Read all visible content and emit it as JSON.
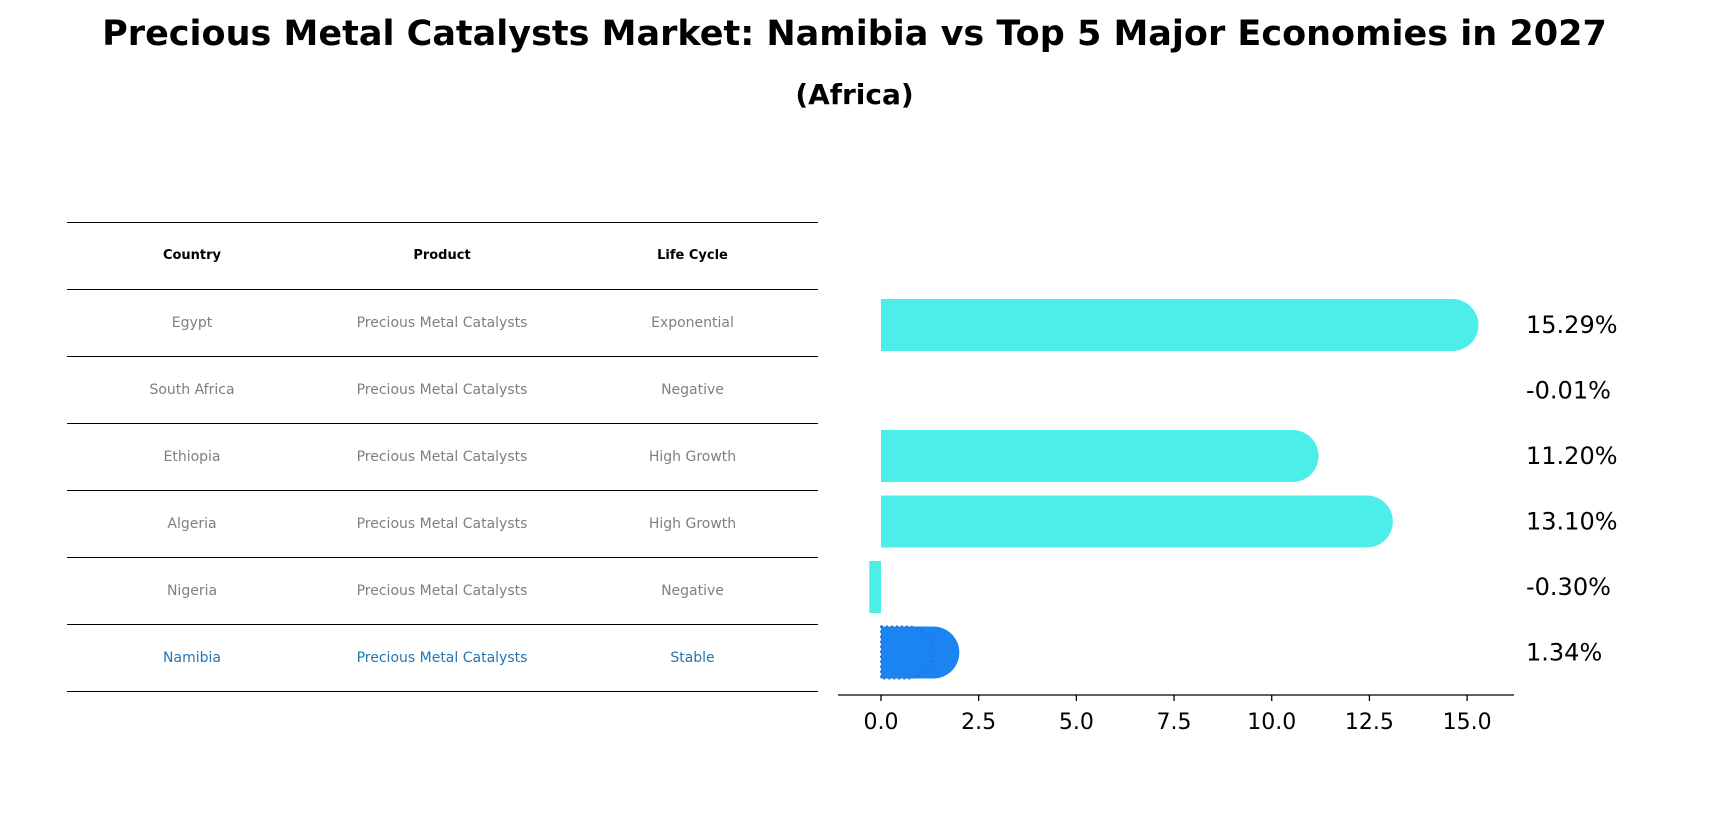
{
  "title": "Precious Metal Catalysts Market: Namibia vs Top 5 Major Economies in 2027",
  "subtitle": "(Africa)",
  "table": {
    "headers": [
      "Country",
      "Product",
      "Life Cycle"
    ],
    "rows": [
      {
        "country": "Egypt",
        "product": "Precious Metal Catalysts",
        "life_cycle": "Exponential"
      },
      {
        "country": "South Africa",
        "product": "Precious Metal Catalysts",
        "life_cycle": "Negative"
      },
      {
        "country": "Ethiopia",
        "product": "Precious Metal Catalysts",
        "life_cycle": "High Growth"
      },
      {
        "country": "Algeria",
        "product": "Precious Metal Catalysts",
        "life_cycle": "High Growth"
      },
      {
        "country": "Nigeria",
        "product": "Precious Metal Catalysts",
        "life_cycle": "Negative"
      },
      {
        "country": "Namibia",
        "product": "Precious Metal Catalysts",
        "life_cycle": "Stable"
      }
    ]
  },
  "colors": {
    "bar": "#4deeea",
    "highlight_bar": "#1a85f2",
    "highlight_text": "#1f77b4",
    "muted_text": "#7f7f7f"
  },
  "chart_data": {
    "type": "bar",
    "orientation": "horizontal",
    "categories": [
      "Egypt",
      "South Africa",
      "Ethiopia",
      "Algeria",
      "Nigeria",
      "Namibia"
    ],
    "values": [
      15.29,
      -0.01,
      11.2,
      13.1,
      -0.3,
      1.34
    ],
    "data_labels": [
      "15.29%",
      "-0.01%",
      "11.20%",
      "13.10%",
      "-0.30%",
      "1.34%"
    ],
    "highlight": "Namibia",
    "xlim": [
      -1.1,
      16.2
    ],
    "xticks": [
      0.0,
      2.5,
      5.0,
      7.5,
      10.0,
      12.5,
      15.0
    ],
    "xtick_labels": [
      "0.0",
      "2.5",
      "5.0",
      "7.5",
      "10.0",
      "12.5",
      "15.0"
    ],
    "grid": false
  }
}
